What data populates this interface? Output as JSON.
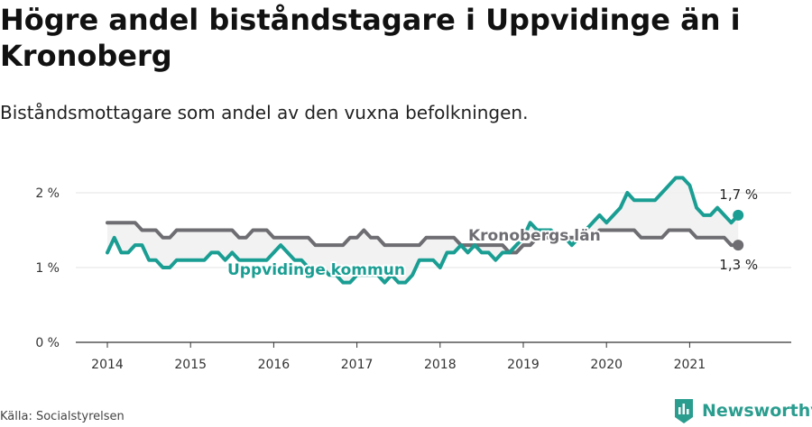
{
  "title": "Högre andel biståndstagare i Uppvidinge än i Kronoberg",
  "subtitle": "Biståndsmottagare som andel av den vuxna befolkningen.",
  "source": "Källa: Socialstyrelsen",
  "brand": "Newsworthy",
  "colors": {
    "kommun": "#1a9e93",
    "lan": "#6d6d72",
    "band": "#efefef",
    "brand": "#2a9d8f"
  },
  "chart_data": {
    "type": "line",
    "x_tick_labels": [
      "2014",
      "2015",
      "2016",
      "2017",
      "2018",
      "2019",
      "2020",
      "2021"
    ],
    "y_tick_labels": [
      "0 %",
      "1 %",
      "2 %"
    ],
    "ylim": [
      0,
      2.2
    ],
    "x_start": "2014-01",
    "interval": "monthly",
    "series": [
      {
        "name": "Uppvidinge kommun",
        "color": "#1a9e93",
        "end_label": "1,7 %",
        "values": [
          1.2,
          1.4,
          1.2,
          1.2,
          1.3,
          1.3,
          1.1,
          1.1,
          1.0,
          1.0,
          1.1,
          1.1,
          1.1,
          1.1,
          1.1,
          1.2,
          1.2,
          1.1,
          1.2,
          1.1,
          1.1,
          1.1,
          1.1,
          1.1,
          1.2,
          1.3,
          1.2,
          1.1,
          1.1,
          1.0,
          1.0,
          1.0,
          0.9,
          0.9,
          0.8,
          0.8,
          0.9,
          0.9,
          0.9,
          0.9,
          0.8,
          0.9,
          0.8,
          0.8,
          0.9,
          1.1,
          1.1,
          1.1,
          1.0,
          1.2,
          1.2,
          1.3,
          1.2,
          1.3,
          1.2,
          1.2,
          1.1,
          1.2,
          1.2,
          1.3,
          1.4,
          1.6,
          1.5,
          1.5,
          1.5,
          1.4,
          1.4,
          1.3,
          1.4,
          1.5,
          1.6,
          1.7,
          1.6,
          1.7,
          1.8,
          2.0,
          1.9,
          1.9,
          1.9,
          1.9,
          2.0,
          2.1,
          2.2,
          2.2,
          2.1,
          1.8,
          1.7,
          1.7,
          1.8,
          1.7,
          1.6,
          1.7
        ]
      },
      {
        "name": "Kronobergs län",
        "color": "#6d6d72",
        "end_label": "1,3 %",
        "values": [
          1.6,
          1.6,
          1.6,
          1.6,
          1.6,
          1.5,
          1.5,
          1.5,
          1.4,
          1.4,
          1.5,
          1.5,
          1.5,
          1.5,
          1.5,
          1.5,
          1.5,
          1.5,
          1.5,
          1.4,
          1.4,
          1.5,
          1.5,
          1.5,
          1.4,
          1.4,
          1.4,
          1.4,
          1.4,
          1.4,
          1.3,
          1.3,
          1.3,
          1.3,
          1.3,
          1.4,
          1.4,
          1.5,
          1.4,
          1.4,
          1.3,
          1.3,
          1.3,
          1.3,
          1.3,
          1.3,
          1.4,
          1.4,
          1.4,
          1.4,
          1.4,
          1.3,
          1.3,
          1.3,
          1.3,
          1.3,
          1.3,
          1.3,
          1.2,
          1.2,
          1.3,
          1.3,
          1.4,
          1.4,
          1.4,
          1.4,
          1.4,
          1.4,
          1.4,
          1.4,
          1.4,
          1.5,
          1.5,
          1.5,
          1.5,
          1.5,
          1.5,
          1.4,
          1.4,
          1.4,
          1.4,
          1.5,
          1.5,
          1.5,
          1.5,
          1.4,
          1.4,
          1.4,
          1.4,
          1.4,
          1.3,
          1.3
        ]
      }
    ],
    "grid": true,
    "legend": "inline"
  }
}
